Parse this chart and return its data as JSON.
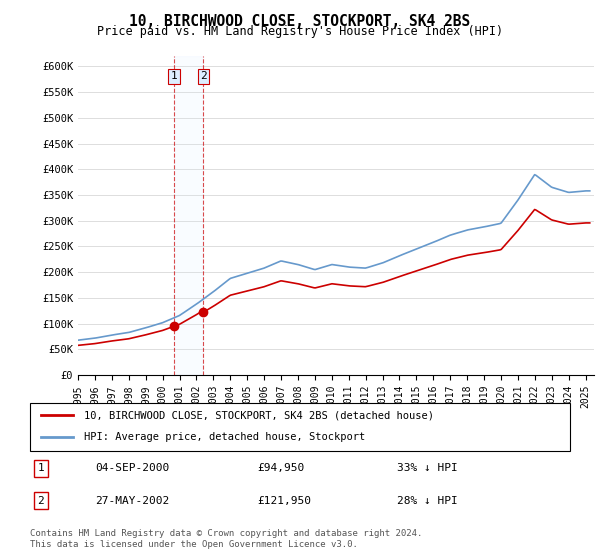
{
  "title1": "10, BIRCHWOOD CLOSE, STOCKPORT, SK4 2BS",
  "title2": "Price paid vs. HM Land Registry's House Price Index (HPI)",
  "ylabel_ticks": [
    "£0",
    "£50K",
    "£100K",
    "£150K",
    "£200K",
    "£250K",
    "£300K",
    "£350K",
    "£400K",
    "£450K",
    "£500K",
    "£550K",
    "£600K"
  ],
  "ytick_values": [
    0,
    50000,
    100000,
    150000,
    200000,
    250000,
    300000,
    350000,
    400000,
    450000,
    500000,
    550000,
    600000
  ],
  "ylim": [
    0,
    620000
  ],
  "xlim_start": 1995.0,
  "xlim_end": 2025.5,
  "sale1_year": 2000.67,
  "sale1_price": 94950,
  "sale2_year": 2002.4,
  "sale2_price": 121950,
  "vline1_x": 2000.67,
  "vline2_x": 2002.4,
  "legend_label_red": "10, BIRCHWOOD CLOSE, STOCKPORT, SK4 2BS (detached house)",
  "legend_label_blue": "HPI: Average price, detached house, Stockport",
  "table_row1": [
    "1",
    "04-SEP-2000",
    "£94,950",
    "33% ↓ HPI"
  ],
  "table_row2": [
    "2",
    "27-MAY-2002",
    "£121,950",
    "28% ↓ HPI"
  ],
  "footnote": "Contains HM Land Registry data © Crown copyright and database right 2024.\nThis data is licensed under the Open Government Licence v3.0.",
  "red_color": "#cc0000",
  "blue_color": "#6699cc",
  "vline_color": "#cc0000",
  "box_fill": "#ddeeff",
  "background_color": "#ffffff",
  "grid_color": "#dddddd"
}
